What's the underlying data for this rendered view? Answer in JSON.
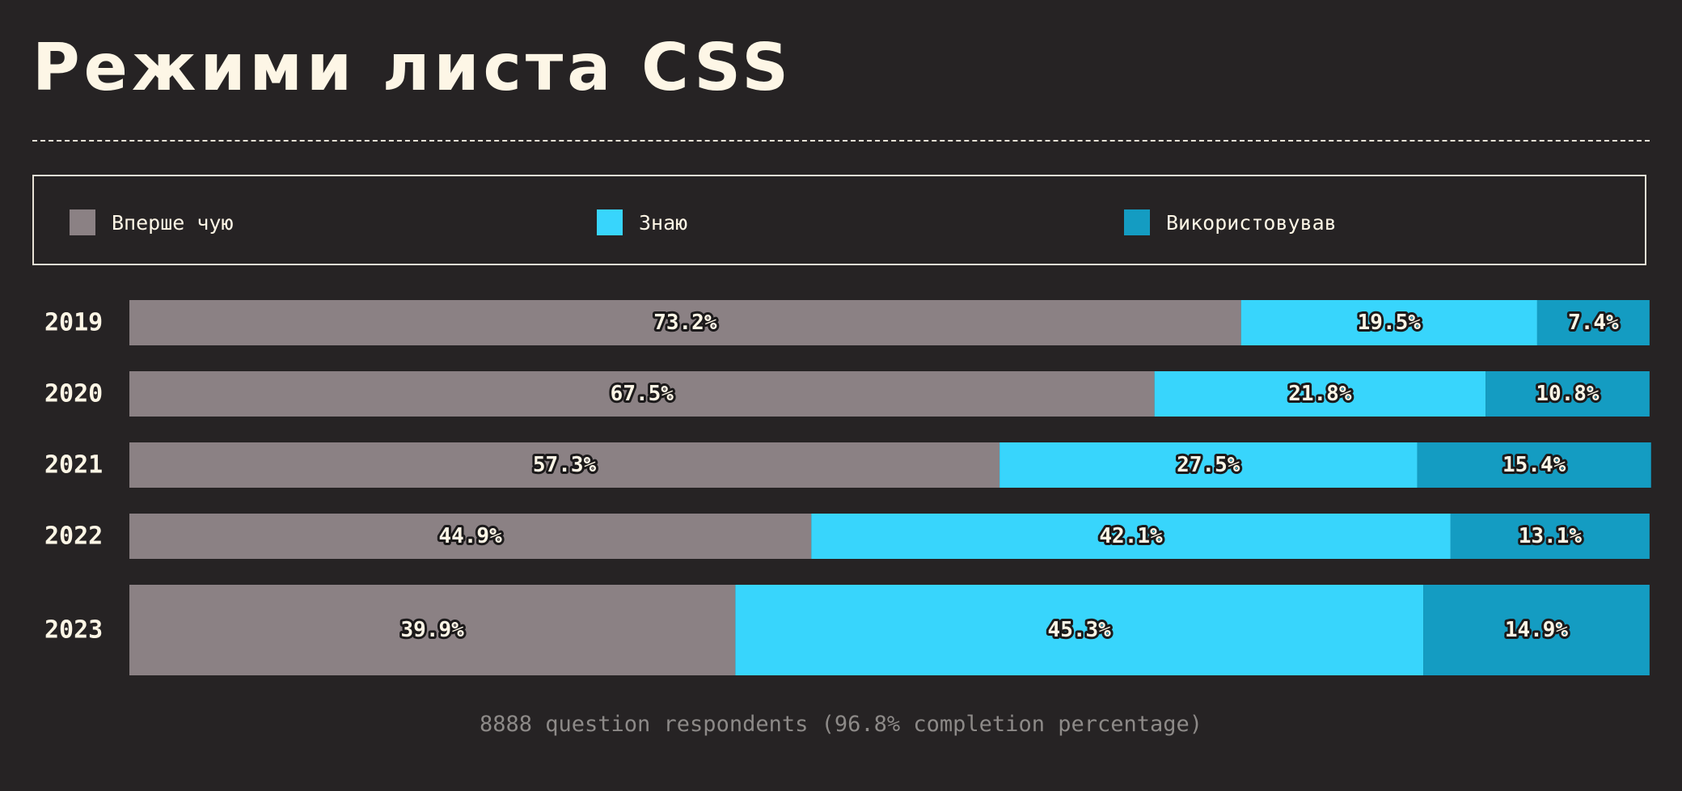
{
  "title": "Режими листа CSS",
  "footer": "8888 question respondents (96.8% completion percentage)",
  "colors": {
    "background": "#262324",
    "text": "#fdf6e6",
    "never_heard": "#8b8184",
    "know": "#38d5fc",
    "used": "#149cc2"
  },
  "legend": [
    {
      "label": "Вперше чую",
      "color": "#8b8184",
      "icon": "square-swatch"
    },
    {
      "label": "Знаю",
      "color": "#38d5fc",
      "icon": "square-swatch"
    },
    {
      "label": "Використовував",
      "color": "#149cc2",
      "icon": "square-swatch"
    }
  ],
  "chart_data": {
    "type": "bar",
    "orientation": "horizontal",
    "stacked": true,
    "categories": [
      "2019",
      "2020",
      "2021",
      "2022",
      "2023"
    ],
    "series": [
      {
        "name": "Вперше чую",
        "values": [
          73.2,
          67.5,
          57.3,
          44.9,
          39.9
        ],
        "labels": [
          "73.2%",
          "67.5%",
          "57.3%",
          "44.9%",
          "39.9%"
        ]
      },
      {
        "name": "Знаю",
        "values": [
          19.5,
          21.8,
          27.5,
          42.1,
          45.3
        ],
        "labels": [
          "19.5%",
          "21.8%",
          "27.5%",
          "42.1%",
          "45.3%"
        ]
      },
      {
        "name": "Використовував",
        "values": [
          7.4,
          10.8,
          15.4,
          13.1,
          14.9
        ],
        "labels": [
          "7.4%",
          "10.8%",
          "15.4%",
          "13.1%",
          "14.9%"
        ]
      }
    ],
    "xlim": [
      0,
      100
    ],
    "legend_position": "top"
  }
}
